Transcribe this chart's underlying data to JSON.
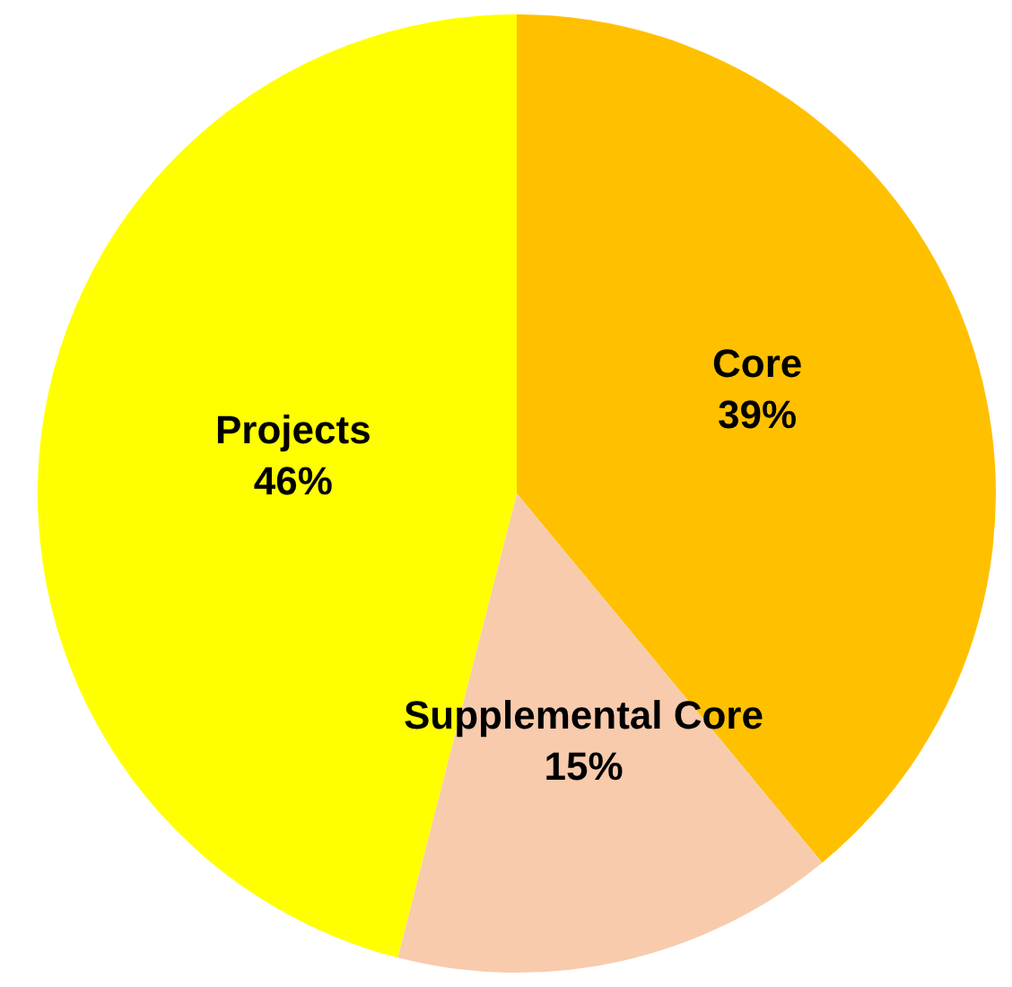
{
  "chart_data": {
    "type": "pie",
    "categories": [
      "Core",
      "Supplemental Core",
      "Projects"
    ],
    "values": [
      39,
      15,
      46
    ],
    "colors": [
      "#ffc000",
      "#f8cbad",
      "#ffff00"
    ],
    "value_labels": [
      "39%",
      "15%",
      "46%"
    ],
    "legend": false
  }
}
